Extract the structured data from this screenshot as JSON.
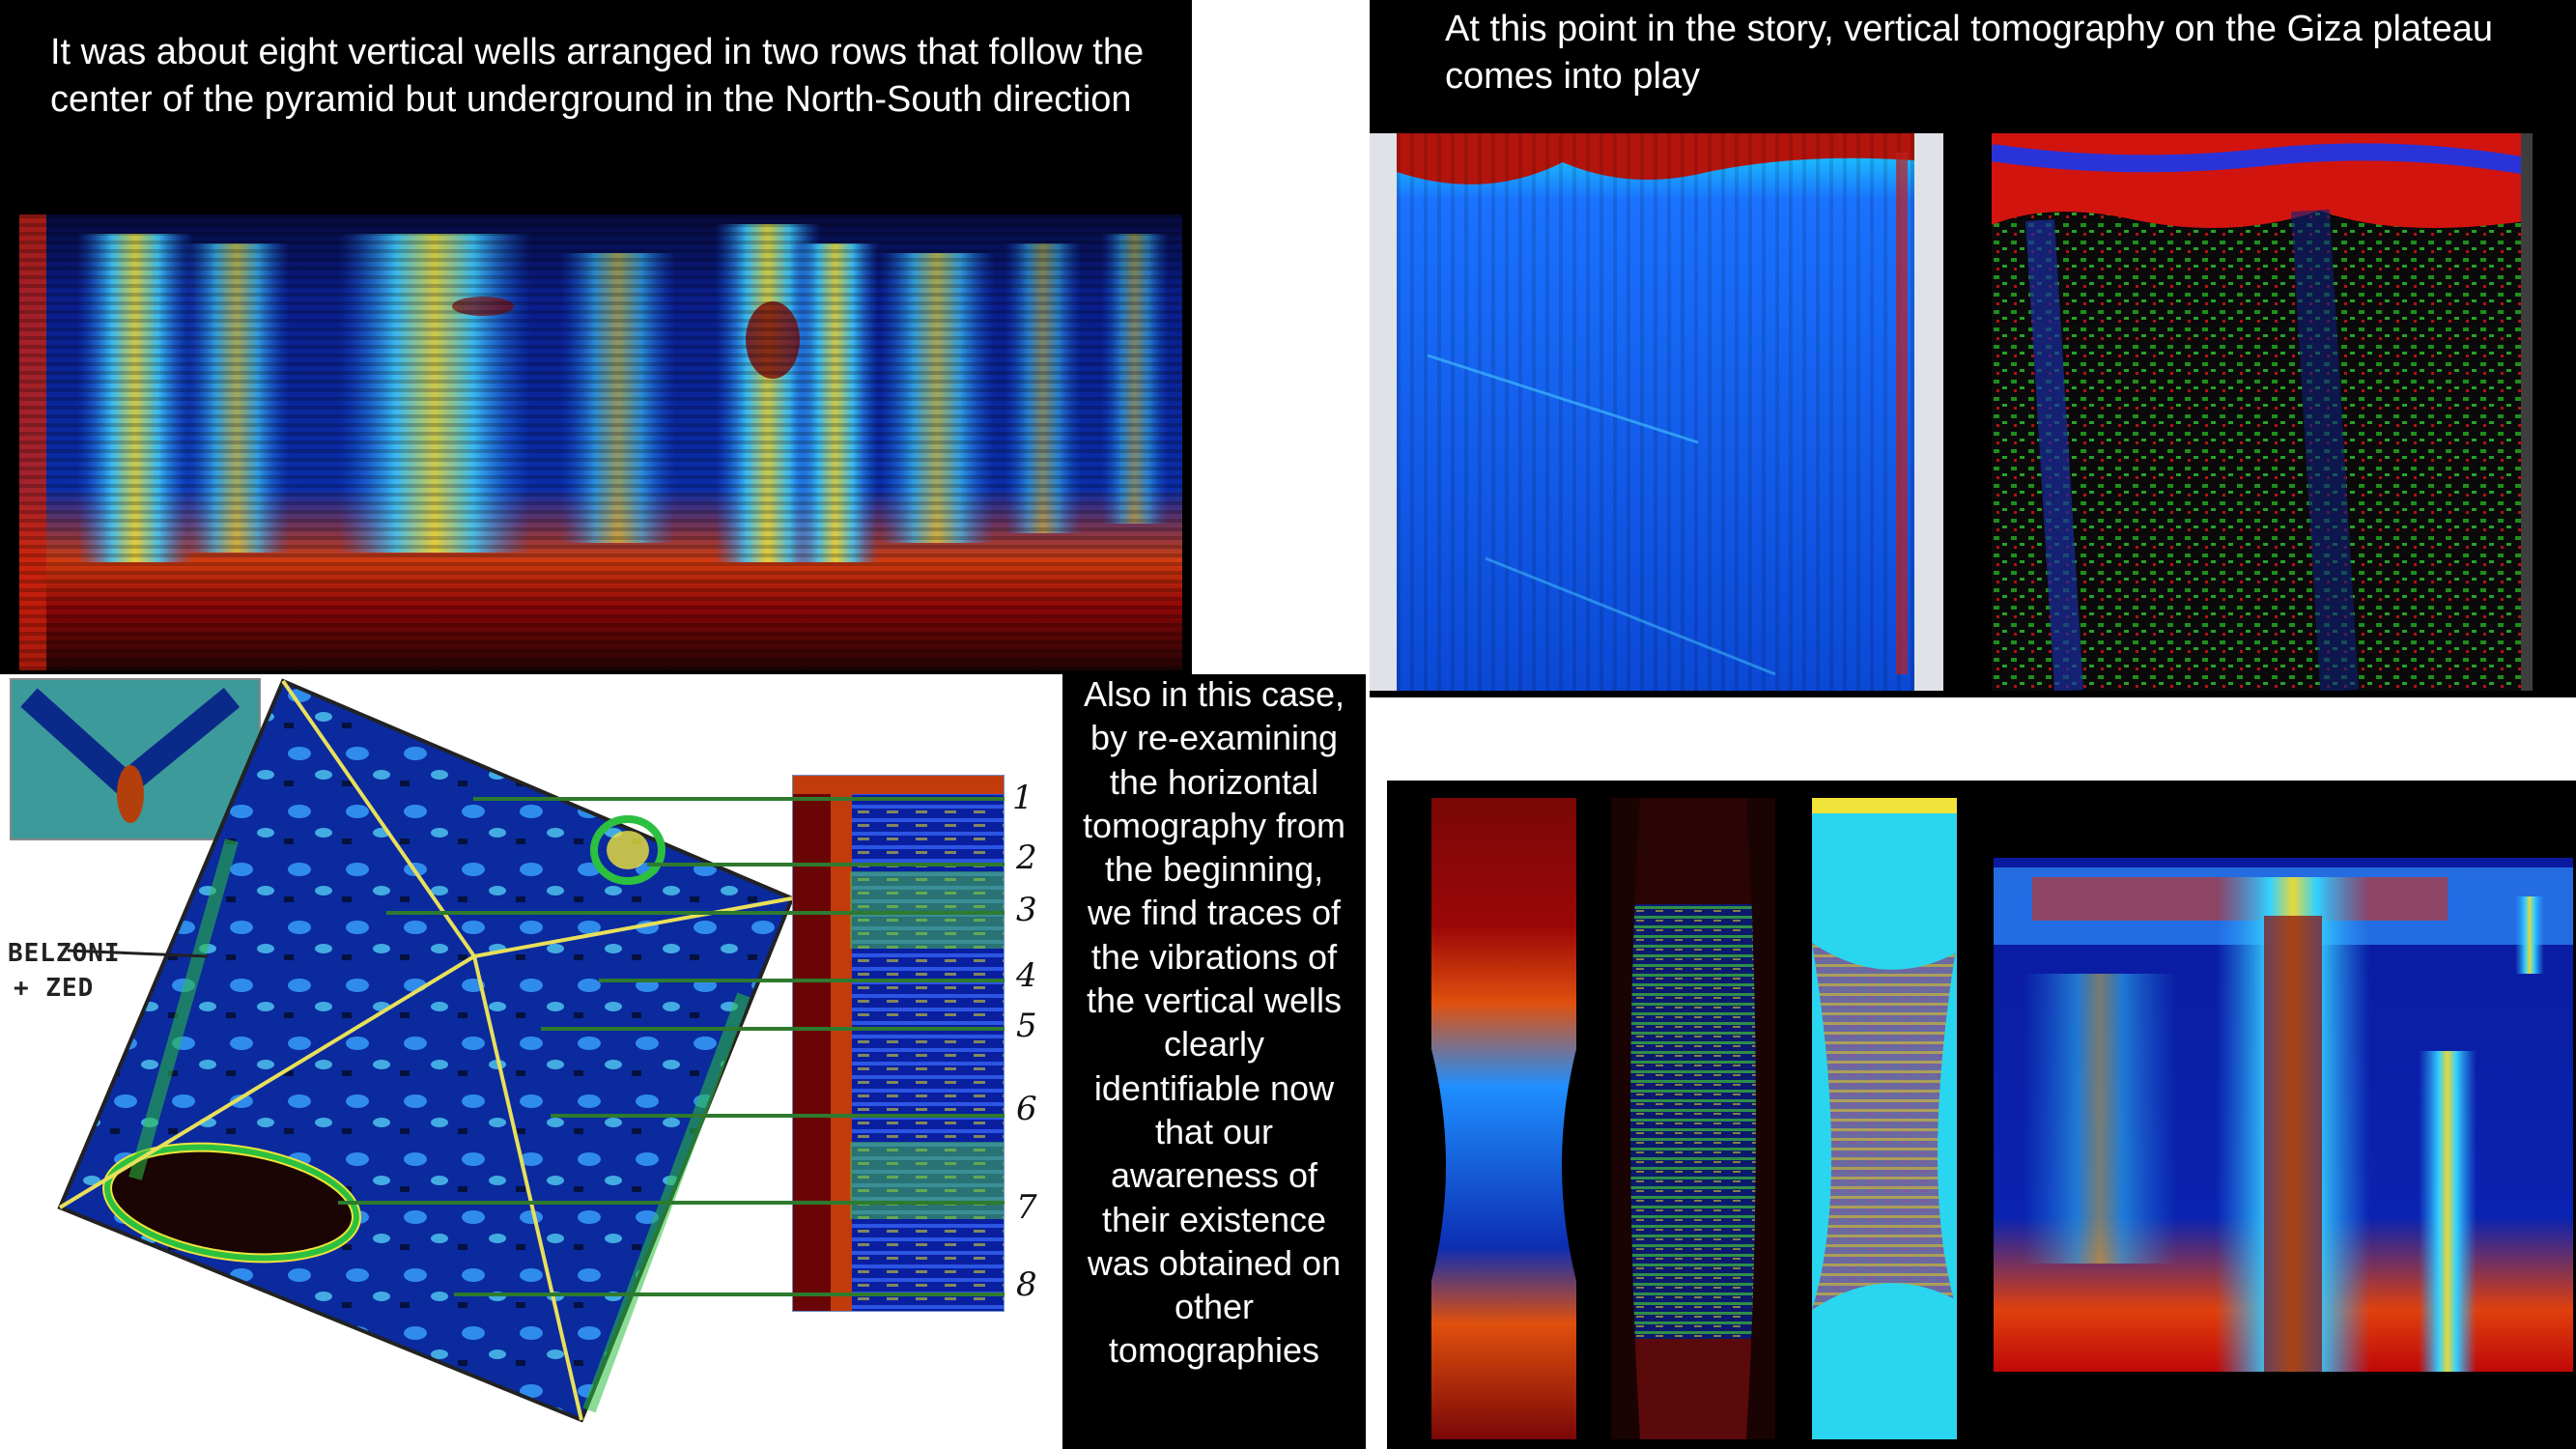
{
  "top_left": {
    "caption": "It was about eight vertical wells arranged in two rows that follow the center of the pyramid but underground in the North-South direction"
  },
  "top_right": {
    "caption": "At this point in the story, vertical tomography on the Giza plateau comes into play"
  },
  "middle": {
    "caption": "Also in this case, by re-examining the horizontal tomography from the beginning, we find traces of the vibrations of the vertical wells clearly identifiable now that our awareness of their existence was obtained on other tomographies",
    "caption_lines": [
      "Also in this case,",
      "by re-examining",
      "the horizontal",
      "tomography from",
      "the beginning,",
      "we find traces of",
      "the vibrations of",
      "the vertical wells",
      "clearly",
      "identifiable now",
      "that our",
      "awareness of",
      "their existence",
      "was obtained on",
      "other",
      "tomographies"
    ],
    "well_numbers": [
      "1",
      "2",
      "3",
      "4",
      "5",
      "6",
      "7",
      "8"
    ],
    "handwritten_label_1": "BELZONI",
    "handwritten_label_2": "+ ZED"
  },
  "colors": {
    "deep_blue": "#00109a",
    "blue": "#1a5cff",
    "cyan": "#22d6ff",
    "green": "#3ec83a",
    "yellow": "#f2e63a",
    "red": "#c8100c",
    "dark_red": "#6a0606",
    "guide_yellow": "#e8e05a",
    "guide_green": "#2e7a2e"
  }
}
